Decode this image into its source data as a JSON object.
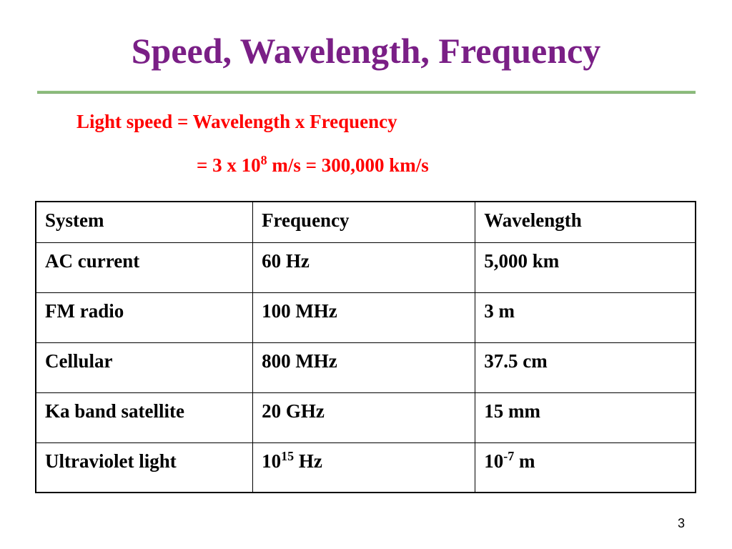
{
  "title": "Speed, Wavelength, Frequency",
  "formula": {
    "line1": "Light speed = Wavelength x Frequency",
    "line2": {
      "before": "= 3 x 10",
      "sup": "8",
      "after": " m/s = 300,000 km/s"
    }
  },
  "table": {
    "header": [
      "System",
      "Frequency",
      "Wavelength"
    ],
    "rows": [
      [
        "AC current",
        "60 Hz",
        "5,000 km"
      ],
      [
        "FM radio",
        "100 MHz",
        "3 m"
      ],
      [
        "Cellular",
        "800 MHz",
        "37.5 cm"
      ],
      [
        "Ka band satellite",
        "20 GHz",
        "15 mm"
      ],
      [
        "Ultraviolet light",
        {
          "before": "10",
          "sup": "15",
          "after": " Hz"
        },
        {
          "before": "10",
          "sup": "-7",
          "after": " m"
        }
      ]
    ]
  },
  "page_number": "3"
}
